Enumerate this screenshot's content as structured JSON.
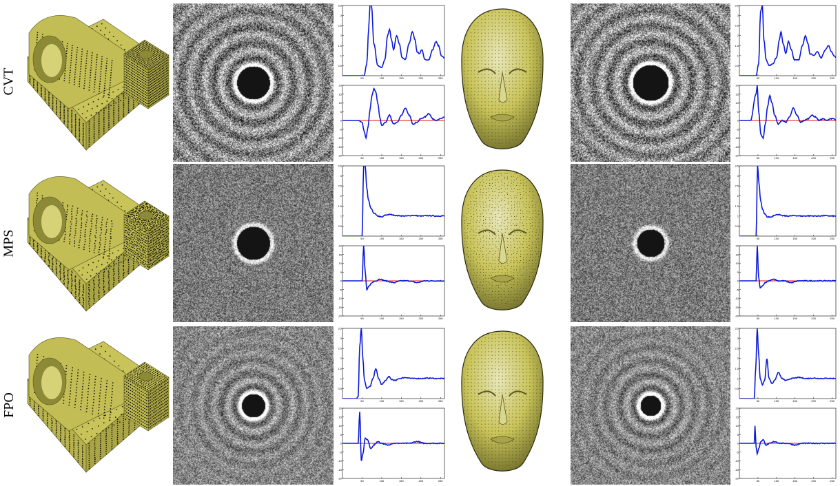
{
  "figure": {
    "rows": [
      {
        "id": "cvt",
        "label": "CVT"
      },
      {
        "id": "mps",
        "label": "MPS"
      },
      {
        "id": "fpo",
        "label": "FPO"
      }
    ]
  },
  "colors": {
    "mesh": "#c9c45a",
    "mesh_dark": "#8c8a36",
    "curve": "#0a18d8",
    "reference": "#e01010",
    "spectrum_bg_cvt": "#8a8a8a",
    "spectrum_bg_mps": "#7a7a7a",
    "spectrum_bg_fpo": "#858585"
  },
  "chart_data": [
    {
      "type": "line",
      "row": "cvt",
      "model": "part",
      "metric": "radial-mean",
      "x_ticks": [
        50,
        100,
        150,
        200,
        250
      ],
      "y_ticks": [
        0.5,
        1,
        1.5,
        2,
        2.5,
        3,
        3.5
      ],
      "xlim": [
        0,
        260
      ],
      "ylim": [
        0,
        3.5
      ],
      "x": [
        0,
        30,
        55,
        62,
        67,
        70,
        74,
        80,
        90,
        100,
        108,
        115,
        120,
        125,
        130,
        138,
        145,
        152,
        160,
        170,
        178,
        185,
        190,
        196,
        202,
        210,
        220,
        230,
        238,
        245,
        252,
        260
      ],
      "y": [
        0,
        0,
        0,
        0.6,
        2.4,
        3.5,
        3.5,
        1.6,
        0.5,
        0.4,
        0.8,
        2.0,
        2.3,
        1.8,
        1.3,
        2.0,
        1.6,
        0.9,
        0.8,
        1.6,
        2.2,
        1.8,
        1.2,
        1.1,
        1.3,
        0.8,
        0.8,
        1.3,
        1.7,
        1.5,
        1.0,
        0.9
      ]
    },
    {
      "type": "line",
      "row": "cvt",
      "model": "part",
      "metric": "anisotropy",
      "x_ticks": [
        50,
        100,
        150,
        200,
        250
      ],
      "y_ticks": [
        -20,
        -15,
        -10,
        -5,
        0,
        5,
        10,
        15,
        20
      ],
      "xlim": [
        0,
        260
      ],
      "ylim": [
        -20,
        20
      ],
      "reference_y": 0,
      "x": [
        0,
        10,
        20,
        30,
        40,
        50,
        55,
        60,
        65,
        70,
        75,
        80,
        85,
        90,
        95,
        100,
        110,
        120,
        130,
        140,
        150,
        160,
        170,
        180,
        190,
        200,
        210,
        220,
        230,
        240,
        250,
        260
      ],
      "y": [
        0,
        0,
        0,
        0,
        0,
        -1,
        -6,
        -10,
        -4,
        6,
        14,
        18,
        16,
        10,
        2,
        -3,
        -1,
        3,
        -2,
        -1,
        3,
        7,
        3,
        -2,
        -1,
        1,
        2,
        4,
        1,
        0,
        1,
        2
      ]
    },
    {
      "type": "line",
      "row": "cvt",
      "model": "head",
      "metric": "radial-mean",
      "x_ticks": [
        50,
        100,
        150,
        200,
        250
      ],
      "y_ticks": [
        0.5,
        1,
        1.5,
        2,
        2.5,
        3,
        3.5
      ],
      "xlim": [
        0,
        260
      ],
      "ylim": [
        0,
        3.5
      ],
      "x": [
        0,
        25,
        45,
        52,
        57,
        62,
        66,
        72,
        80,
        90,
        100,
        108,
        112,
        118,
        125,
        132,
        140,
        148,
        160,
        170,
        178,
        185,
        190,
        200,
        210,
        220,
        232,
        240,
        248,
        255,
        260
      ],
      "y": [
        0,
        0,
        0,
        0.6,
        3.2,
        3.5,
        1.8,
        0.8,
        0.5,
        0.6,
        0.9,
        1.8,
        2.2,
        1.6,
        1.1,
        1.7,
        1.3,
        0.8,
        0.8,
        1.5,
        2.0,
        1.6,
        1.1,
        1.0,
        1.2,
        0.9,
        1.3,
        1.5,
        1.2,
        1.0,
        0.9
      ]
    },
    {
      "type": "line",
      "row": "cvt",
      "model": "head",
      "metric": "anisotropy",
      "x_ticks": [
        50,
        100,
        150,
        200,
        250
      ],
      "y_ticks": [
        -20,
        -15,
        -10,
        -5,
        0,
        5,
        10,
        15,
        20
      ],
      "xlim": [
        0,
        260
      ],
      "ylim": [
        -20,
        20
      ],
      "reference_y": 0,
      "x": [
        0,
        30,
        45,
        48,
        52,
        58,
        64,
        70,
        76,
        82,
        88,
        95,
        105,
        115,
        125,
        135,
        145,
        155,
        165,
        175,
        185,
        195,
        205,
        215,
        225,
        235,
        245,
        255,
        260
      ],
      "y": [
        0,
        0,
        15,
        20,
        5,
        -8,
        -10,
        -2,
        8,
        14,
        10,
        3,
        -2,
        0,
        -1,
        2,
        7,
        3,
        -1,
        0,
        1,
        3,
        2,
        0,
        1,
        0,
        1,
        1,
        0
      ]
    },
    {
      "type": "line",
      "row": "mps",
      "model": "part",
      "metric": "radial-mean",
      "x_ticks": [
        50,
        100,
        150,
        200,
        250
      ],
      "y_ticks": [
        0.5,
        1,
        1.5,
        2,
        2.5,
        3,
        3.5
      ],
      "xlim": [
        0,
        260
      ],
      "ylim": [
        0,
        3.5
      ],
      "x": [
        0,
        40,
        50,
        54,
        58,
        62,
        66,
        72,
        80,
        90,
        100,
        110,
        120,
        140,
        160,
        180,
        200,
        220,
        240,
        260
      ],
      "y": [
        0,
        0,
        0,
        3.5,
        3.5,
        2.4,
        1.8,
        1.4,
        1.15,
        1.0,
        0.95,
        1.05,
        1.08,
        1.02,
        1.0,
        1.03,
        1.0,
        1.02,
        1.0,
        1.01
      ]
    },
    {
      "type": "line",
      "row": "mps",
      "model": "part",
      "metric": "anisotropy",
      "x_ticks": [
        50,
        100,
        150,
        200,
        250
      ],
      "y_ticks": [
        -20,
        -15,
        -10,
        -5,
        0,
        5,
        10,
        15,
        20
      ],
      "xlim": [
        0,
        260
      ],
      "ylim": [
        -20,
        20
      ],
      "reference_y": 0,
      "x": [
        0,
        40,
        50,
        54,
        58,
        62,
        68,
        75,
        85,
        95,
        110,
        130,
        150,
        170,
        190,
        210,
        230,
        250,
        260
      ],
      "y": [
        0,
        0,
        0,
        20,
        5,
        -5,
        -3,
        -1,
        0,
        1,
        0,
        -1,
        0,
        0,
        -1,
        0,
        0,
        0,
        0
      ]
    },
    {
      "type": "line",
      "row": "mps",
      "model": "head",
      "metric": "radial-mean",
      "x_ticks": [
        50,
        100,
        150,
        200,
        250
      ],
      "y_ticks": [
        0.5,
        1,
        1.5,
        2,
        2.5,
        3,
        3.5
      ],
      "xlim": [
        0,
        260
      ],
      "ylim": [
        0,
        3.5
      ],
      "x": [
        0,
        35,
        45,
        49,
        53,
        57,
        62,
        68,
        76,
        85,
        95,
        105,
        115,
        130,
        150,
        170,
        190,
        210,
        230,
        250,
        260
      ],
      "y": [
        0,
        0,
        0,
        3.5,
        2.6,
        1.8,
        1.35,
        1.1,
        0.95,
        0.95,
        1.05,
        1.08,
        1.02,
        1.0,
        1.02,
        1.0,
        1.01,
        1.0,
        1.02,
        1.0,
        1.0
      ]
    },
    {
      "type": "line",
      "row": "mps",
      "model": "head",
      "metric": "anisotropy",
      "x_ticks": [
        50,
        100,
        150,
        200,
        250
      ],
      "y_ticks": [
        -20,
        -15,
        -10,
        -5,
        0,
        5,
        10,
        15,
        20
      ],
      "xlim": [
        0,
        260
      ],
      "ylim": [
        -20,
        20
      ],
      "reference_y": 0,
      "x": [
        0,
        35,
        45,
        48,
        52,
        56,
        62,
        70,
        80,
        92,
        105,
        120,
        140,
        160,
        180,
        200,
        220,
        240,
        260
      ],
      "y": [
        0,
        0,
        0,
        20,
        2,
        -4,
        -3,
        -1,
        0,
        1,
        0,
        0,
        -1,
        0,
        0,
        0,
        0,
        0,
        0
      ]
    },
    {
      "type": "line",
      "row": "fpo",
      "model": "part",
      "metric": "radial-mean",
      "x_ticks": [
        50,
        100,
        150,
        200,
        250
      ],
      "y_ticks": [
        0.5,
        1,
        1.5,
        2,
        2.5,
        3,
        3.5
      ],
      "xlim": [
        0,
        260
      ],
      "ylim": [
        0,
        3.5
      ],
      "x": [
        0,
        20,
        35,
        40,
        44,
        48,
        52,
        56,
        62,
        70,
        78,
        85,
        92,
        100,
        110,
        118,
        125,
        135,
        145,
        160,
        180,
        200,
        220,
        240,
        260
      ],
      "y": [
        0,
        0,
        0,
        0.1,
        2.6,
        3.5,
        2.0,
        0.9,
        0.5,
        0.6,
        1.0,
        1.5,
        1.0,
        0.7,
        0.9,
        1.1,
        0.95,
        0.9,
        1.0,
        1.05,
        1.0,
        1.0,
        1.02,
        1.0,
        1.0
      ]
    },
    {
      "type": "line",
      "row": "fpo",
      "model": "part",
      "metric": "anisotropy",
      "x_ticks": [
        50,
        100,
        150,
        200,
        250
      ],
      "y_ticks": [
        -20,
        -15,
        -10,
        -5,
        0,
        5,
        10,
        15,
        20
      ],
      "xlim": [
        0,
        260
      ],
      "ylim": [
        -20,
        20
      ],
      "reference_y": 0,
      "x": [
        0,
        30,
        40,
        44,
        48,
        52,
        58,
        64,
        72,
        80,
        90,
        100,
        115,
        130,
        150,
        170,
        190,
        210,
        230,
        250,
        260
      ],
      "y": [
        0,
        0,
        0,
        18,
        -10,
        -6,
        3,
        2,
        -3,
        -1,
        1,
        0,
        -1,
        0,
        0,
        0,
        1,
        0,
        0,
        0,
        0
      ]
    },
    {
      "type": "line",
      "row": "fpo",
      "model": "head",
      "metric": "radial-mean",
      "x_ticks": [
        50,
        100,
        150,
        200,
        250
      ],
      "y_ticks": [
        0.5,
        1,
        1.5,
        2,
        2.5,
        3,
        3.5
      ],
      "xlim": [
        0,
        260
      ],
      "ylim": [
        0,
        3.5
      ],
      "x": [
        0,
        30,
        40,
        44,
        48,
        52,
        56,
        62,
        68,
        74,
        80,
        88,
        96,
        105,
        115,
        125,
        140,
        160,
        180,
        200,
        220,
        240,
        260
      ],
      "y": [
        0,
        0,
        0,
        1.5,
        3.5,
        2.2,
        1.0,
        0.7,
        0.9,
        2.0,
        1.0,
        0.75,
        0.95,
        1.3,
        1.0,
        0.9,
        1.0,
        1.05,
        1.0,
        1.02,
        1.0,
        1.01,
        1.0
      ]
    },
    {
      "type": "line",
      "row": "fpo",
      "model": "head",
      "metric": "anisotropy",
      "x_ticks": [
        50,
        100,
        150,
        200,
        250
      ],
      "y_ticks": [
        -20,
        -15,
        -10,
        -5,
        0,
        5,
        10,
        15,
        20
      ],
      "xlim": [
        0,
        260
      ],
      "ylim": [
        -20,
        20
      ],
      "reference_y": 0,
      "x": [
        0,
        32,
        40,
        42,
        45,
        48,
        52,
        58,
        64,
        72,
        82,
        95,
        110,
        130,
        150,
        170,
        190,
        210,
        230,
        250,
        260
      ],
      "y": [
        0,
        0,
        0,
        10,
        -2,
        -6,
        -3,
        1,
        2,
        -1,
        0,
        1,
        0,
        0,
        -1,
        0,
        0,
        0,
        0,
        0,
        0
      ]
    }
  ]
}
